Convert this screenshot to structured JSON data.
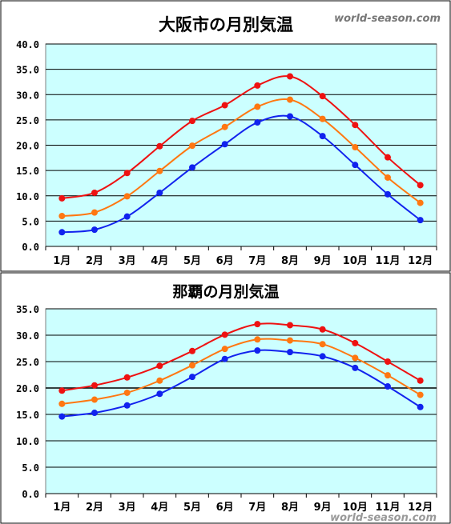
{
  "watermark_top": "world-season.com",
  "watermark_bottom": "world-season.com",
  "colors": {
    "plot_bg": "#ccffff",
    "max": "#ee1111",
    "mean": "#ff7711",
    "min": "#1122ee",
    "grid": "#000000"
  },
  "chart_data": [
    {
      "type": "line",
      "title": "大阪市の月別気温",
      "categories": [
        "1月",
        "2月",
        "3月",
        "4月",
        "5月",
        "6月",
        "7月",
        "8月",
        "9月",
        "10月",
        "11月",
        "12月"
      ],
      "ylim": [
        0,
        40
      ],
      "yticks": [
        "0.0",
        "5.0",
        "10.0",
        "15.0",
        "20.0",
        "25.0",
        "30.0",
        "35.0",
        "40.0"
      ],
      "grid": true,
      "series": [
        {
          "color": "#ee1111",
          "values": [
            9.5,
            10.6,
            14.5,
            19.8,
            24.8,
            27.9,
            31.8,
            33.6,
            29.7,
            24.0,
            17.6,
            12.1
          ]
        },
        {
          "color": "#ff7711",
          "values": [
            6.0,
            6.7,
            9.9,
            14.9,
            19.9,
            23.6,
            27.6,
            29.0,
            25.2,
            19.6,
            13.6,
            8.6
          ]
        },
        {
          "color": "#1122ee",
          "values": [
            2.8,
            3.3,
            5.9,
            10.6,
            15.6,
            20.2,
            24.5,
            25.7,
            21.8,
            16.1,
            10.3,
            5.2
          ]
        }
      ]
    },
    {
      "type": "line",
      "title": "那覇の月別気温",
      "categories": [
        "1月",
        "2月",
        "3月",
        "4月",
        "5月",
        "6月",
        "7月",
        "8月",
        "9月",
        "10月",
        "11月",
        "12月"
      ],
      "ylim": [
        0,
        35
      ],
      "yticks": [
        "0.0",
        "5.0",
        "10.0",
        "15.0",
        "20.0",
        "25.0",
        "30.0",
        "35.0"
      ],
      "grid": true,
      "series": [
        {
          "color": "#ee1111",
          "values": [
            19.5,
            20.5,
            22.0,
            24.2,
            27.0,
            30.1,
            32.1,
            31.9,
            31.1,
            28.5,
            25.0,
            21.4
          ]
        },
        {
          "color": "#ff7711",
          "values": [
            17.0,
            17.8,
            19.1,
            21.4,
            24.3,
            27.4,
            29.2,
            29.0,
            28.3,
            25.7,
            22.4,
            18.7
          ]
        },
        {
          "color": "#1122ee",
          "values": [
            14.6,
            15.3,
            16.7,
            18.9,
            22.1,
            25.5,
            27.1,
            26.8,
            26.0,
            23.8,
            20.3,
            16.4
          ]
        }
      ]
    }
  ]
}
